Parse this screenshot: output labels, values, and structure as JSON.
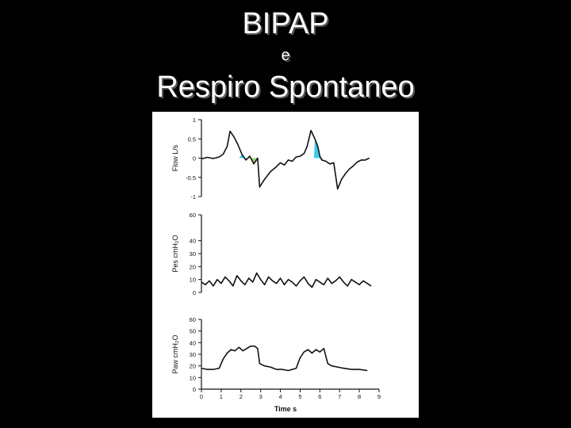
{
  "slide": {
    "title_line1": "BIPAP",
    "title_line2": "e",
    "title_line3": "Respiro Spontaneo"
  },
  "chart_data": [
    {
      "type": "line",
      "ylabel": "Flow L/s",
      "yticks": [
        "1",
        "0.5",
        "0",
        "-0.5",
        "-1"
      ],
      "ylim": [
        -1,
        1
      ],
      "xlim": [
        0,
        9
      ],
      "grid": false,
      "series": [
        {
          "x": [
            0.0,
            0.3,
            0.6,
            0.9,
            1.1,
            1.3,
            1.45,
            1.65,
            1.85,
            2.05,
            2.25,
            2.45,
            2.65,
            2.85,
            2.95,
            3.2,
            3.5,
            3.8,
            4.0,
            4.2,
            4.4,
            4.6,
            4.8,
            5.0,
            5.2,
            5.35,
            5.55,
            5.75,
            5.9,
            6.0,
            6.1,
            6.3,
            6.5,
            6.7,
            6.9,
            7.1,
            7.3,
            7.5,
            7.7,
            7.9,
            8.1,
            8.3,
            8.5
          ],
          "y": [
            -0.02,
            0.02,
            -0.01,
            0.03,
            0.1,
            0.3,
            0.7,
            0.55,
            0.35,
            0.1,
            -0.05,
            0.05,
            -0.15,
            0.0,
            -0.75,
            -0.55,
            -0.35,
            -0.22,
            -0.12,
            -0.18,
            -0.05,
            -0.08,
            0.03,
            0.05,
            0.12,
            0.3,
            0.72,
            0.5,
            0.3,
            0.05,
            -0.05,
            -0.08,
            -0.15,
            -0.12,
            -0.8,
            -0.55,
            -0.4,
            -0.28,
            -0.2,
            -0.1,
            -0.05,
            -0.05,
            0.0
          ]
        }
      ],
      "annotations": [
        {
          "label": "inspiratory-effort",
          "color": "#25c7e6",
          "x_start": 1.9,
          "x_end": 2.35
        },
        {
          "label": "expiratory-effort",
          "color": "#8fd16b",
          "x_start": 2.35,
          "x_end": 2.8
        },
        {
          "label": "inspiratory-effort",
          "color": "#25c7e6",
          "x_start": 5.7,
          "x_end": 6.15
        }
      ]
    },
    {
      "type": "line",
      "ylabel": "Pes cmH₂O",
      "yticks": [
        "60",
        "40",
        "30",
        "20",
        "10",
        "0"
      ],
      "ylim": [
        0,
        60
      ],
      "xlim": [
        0,
        9
      ],
      "grid": false,
      "series": [
        {
          "x": [
            0.0,
            0.2,
            0.4,
            0.6,
            0.8,
            1.0,
            1.2,
            1.4,
            1.6,
            1.8,
            2.0,
            2.2,
            2.4,
            2.6,
            2.8,
            3.0,
            3.2,
            3.4,
            3.6,
            3.8,
            4.0,
            4.2,
            4.4,
            4.6,
            4.8,
            5.0,
            5.2,
            5.4,
            5.6,
            5.8,
            6.0,
            6.2,
            6.4,
            6.6,
            6.8,
            7.0,
            7.2,
            7.4,
            7.6,
            7.8,
            8.0,
            8.2,
            8.4,
            8.6
          ],
          "y": [
            8,
            6,
            9,
            5,
            10,
            7,
            12,
            9,
            5,
            13,
            9,
            6,
            11,
            8,
            15,
            10,
            6,
            12,
            9,
            7,
            11,
            6,
            10,
            8,
            5,
            9,
            12,
            7,
            4,
            10,
            8,
            6,
            11,
            7,
            9,
            12,
            8,
            5,
            10,
            8,
            6,
            9,
            7,
            5
          ]
        }
      ]
    },
    {
      "type": "line",
      "ylabel": "Paw cmH₂O",
      "yticks": [
        "60",
        "50",
        "40",
        "30",
        "20",
        "10",
        "0"
      ],
      "ylim": [
        0,
        60
      ],
      "xlim": [
        0,
        9
      ],
      "xticks": [
        "0",
        "1",
        "2",
        "3",
        "4",
        "5",
        "6",
        "7",
        "8",
        "9"
      ],
      "xlabel": "Time s",
      "grid": false,
      "series": [
        {
          "x": [
            0.0,
            0.3,
            0.6,
            0.9,
            1.1,
            1.3,
            1.5,
            1.7,
            1.9,
            2.1,
            2.3,
            2.5,
            2.7,
            2.85,
            2.95,
            3.2,
            3.5,
            3.8,
            4.1,
            4.4,
            4.6,
            4.8,
            5.0,
            5.2,
            5.4,
            5.6,
            5.8,
            6.0,
            6.2,
            6.4,
            6.6,
            6.9,
            7.2,
            7.6,
            8.0,
            8.4
          ],
          "y": [
            18,
            17,
            17,
            18,
            26,
            31,
            34,
            33,
            36,
            33,
            35,
            37,
            37,
            35,
            22,
            20,
            19,
            17,
            17,
            16,
            17,
            18,
            27,
            32,
            34,
            31,
            34,
            32,
            35,
            22,
            20,
            19,
            18,
            17,
            17,
            16
          ]
        }
      ]
    }
  ]
}
